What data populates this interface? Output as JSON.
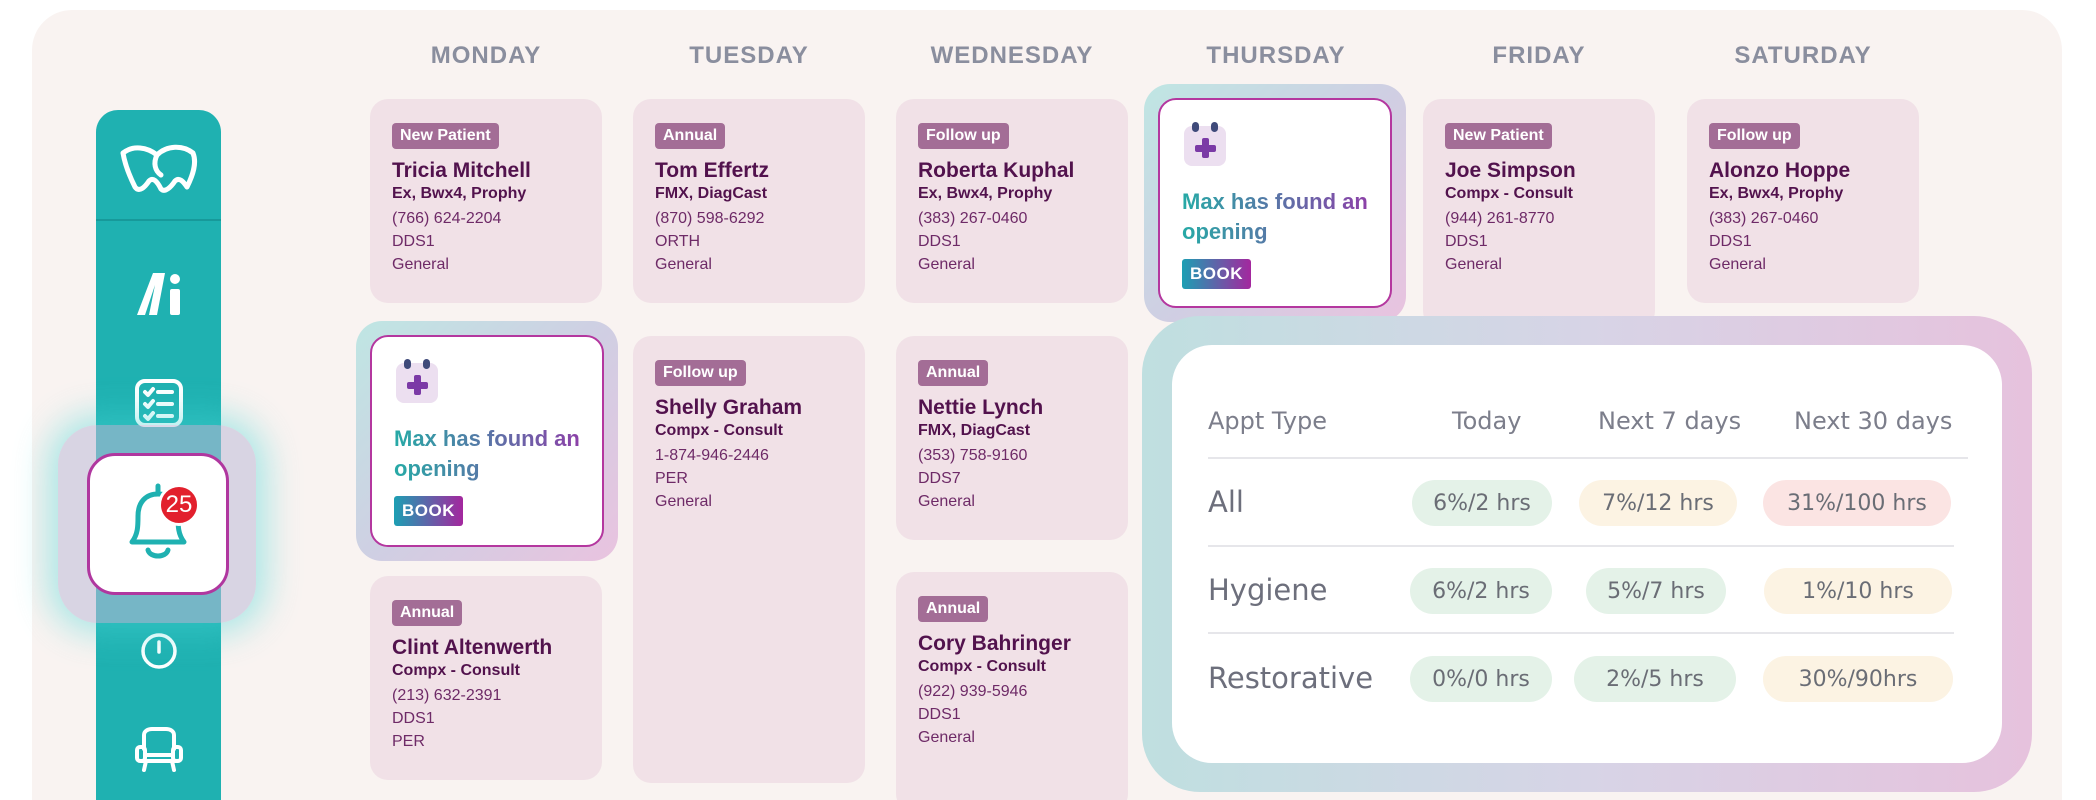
{
  "days": [
    "MONDAY",
    "TUESDAY",
    "WEDNESDAY",
    "THURSDAY",
    "FRIDAY",
    "SATURDAY"
  ],
  "appointments": [
    {
      "tag": "New Patient",
      "name": "Tricia Mitchell",
      "procedure": "Ex, Bwx4, Prophy",
      "phone": "(766) 624-2204",
      "provider": "DDS1",
      "type": "General"
    },
    {
      "tag": "Annual",
      "name": "Tom Effertz",
      "procedure": "FMX, DiagCast",
      "phone": "(870) 598-6292",
      "provider": "ORTH",
      "type": "General"
    },
    {
      "tag": "Follow up",
      "name": "Roberta Kuphal",
      "procedure": "Ex, Bwx4, Prophy",
      "phone": "(383) 267-0460",
      "provider": "DDS1",
      "type": "General"
    },
    {
      "tag": "New Patient",
      "name": "Joe Simpson",
      "procedure": "Compx - Consult",
      "phone": "(944) 261-8770",
      "provider": "DDS1",
      "type": "General"
    },
    {
      "tag": "Follow up",
      "name": "Alonzo Hoppe",
      "procedure": "Ex, Bwx4, Prophy",
      "phone": "(383) 267-0460",
      "provider": "DDS1",
      "type": "General"
    },
    {
      "tag": "Follow up",
      "name": "Shelly Graham",
      "procedure": "Compx - Consult",
      "phone": "1-874-946-2446",
      "provider": "PER",
      "type": "General"
    },
    {
      "tag": "Annual",
      "name": "Nettie Lynch",
      "procedure": "FMX, DiagCast",
      "phone": "(353) 758-9160",
      "provider": "DDS7",
      "type": "General"
    },
    {
      "tag": "Annual",
      "name": "Clint Altenwerth",
      "procedure": "Compx - Consult",
      "phone": "(213) 632-2391",
      "provider": "DDS1",
      "type": "PER"
    },
    {
      "tag": "Annual",
      "name": "Cory Bahringer",
      "procedure": "Compx - Consult",
      "phone": "(922) 939-5946",
      "provider": "DDS1",
      "type": "General"
    }
  ],
  "opening": {
    "message": "Max has found an opening",
    "book_label": "BOOK"
  },
  "notifications": {
    "count": "25"
  },
  "stats": {
    "headers": [
      "Appt Type",
      "Today",
      "Next 7 days",
      "Next 30 days"
    ],
    "rows": [
      {
        "label": "All",
        "today": "6%/2 hrs",
        "next7": "7%/12 hrs",
        "next30": "31%/100 hrs",
        "colors": [
          "green",
          "yellow",
          "pink"
        ]
      },
      {
        "label": "Hygiene",
        "today": "6%/2 hrs",
        "next7": "5%/7 hrs",
        "next30": "1%/10 hrs",
        "colors": [
          "green",
          "green",
          "yellow"
        ]
      },
      {
        "label": "Restorative",
        "today": "0%/0 hrs",
        "next7": "2%/5 hrs",
        "next30": "30%/90hrs",
        "colors": [
          "green",
          "green",
          "yellow"
        ]
      }
    ]
  },
  "sidebar_icons": [
    "tooth-logo-icon",
    "ai-logo-icon",
    "checklist-icon",
    "bell-icon",
    "timer-icon",
    "chair-icon"
  ],
  "colors": {
    "sidebar": "#1fb1b1",
    "accent_purple": "#b0379f",
    "card_bg": "#f1e1e7",
    "badge": "#e2202d"
  }
}
